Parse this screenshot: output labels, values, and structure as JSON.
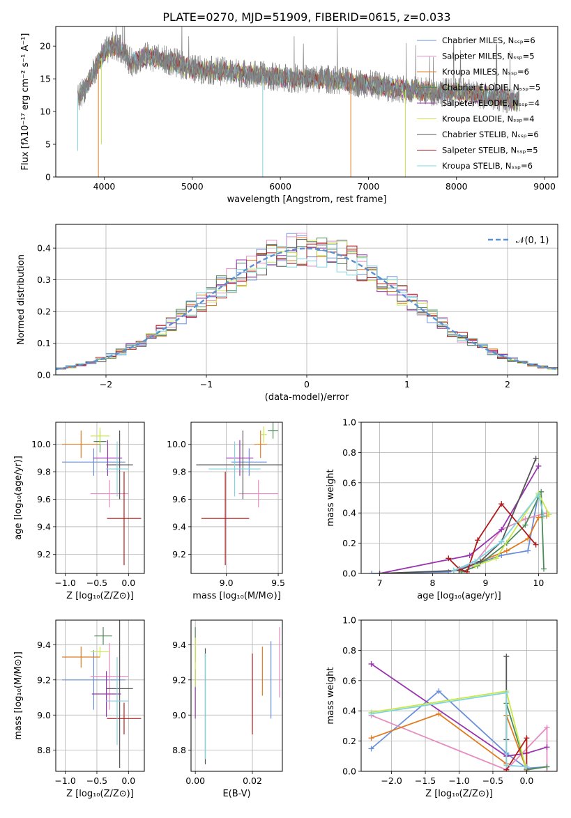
{
  "colors": {
    "s0": "#6a8fd8",
    "s1": "#e58cc0",
    "s2": "#e07b1f",
    "s3": "#4f8a5b",
    "s4": "#9a35b0",
    "s5": "#c9e84a",
    "s6": "#555555",
    "s7": "#b01a1a",
    "s8": "#7fd4e0",
    "gauss": "#5a8fd0"
  },
  "chart_data": [
    {
      "id": "spectrum",
      "type": "line",
      "title": "PLATE=0270, MJD=51909, FIBERID=0615, z=0.033",
      "xlabel": "wavelength [Angstrom, rest frame]",
      "ylabel": "Flux [fλ10⁻¹⁷ erg cm⁻² s⁻¹ A⁻¹]",
      "xlim": [
        3450,
        9150
      ],
      "ylim": [
        0,
        23
      ],
      "xticks": [
        4000,
        5000,
        6000,
        7000,
        8000,
        9000
      ],
      "yticks": [
        0,
        5,
        10,
        15,
        20
      ],
      "legend_position": "top-right",
      "legend": [
        "Chabrier MILES, Nₛₛₚ=6",
        "Salpeter MILES, Nₛₛₚ=5",
        "Kroupa MILES, Nₛₛₚ=6",
        "Chabrier ELODIE, Nₛₛₚ=5",
        "Salpeter ELODIE, Nₛₛₚ=4",
        "Kroupa ELODIE, Nₛₛₚ=4",
        "Chabrier STELIB, Nₛₛₚ=6",
        "Salpeter STELIB, Nₛₛₚ=5",
        "Kroupa STELIB, Nₛₛₚ=6"
      ],
      "continuum": {
        "x": [
          3700,
          3800,
          3900,
          4000,
          4100,
          4200,
          4300,
          4500,
          4800,
          5000,
          5300,
          5600,
          6000,
          6300,
          6500,
          6700,
          7000,
          7300,
          7500,
          7800,
          8000,
          8300,
          8500,
          8700
        ],
        "y": [
          12,
          14,
          16.5,
          19,
          20,
          19.5,
          17.5,
          18.5,
          17.5,
          16.5,
          16.2,
          15.8,
          15.2,
          15,
          15,
          14.7,
          14.2,
          13.5,
          13.2,
          13,
          13,
          12.5,
          12.2,
          11.5
        ]
      },
      "dips": [
        {
          "x": 3934,
          "y": 0
        },
        {
          "x": 3968,
          "y": 5
        },
        {
          "x": 5800,
          "y": 0
        },
        {
          "x": 6800,
          "y": 0
        },
        {
          "x": 7420,
          "y": 0
        },
        {
          "x": 3700,
          "y": 4
        }
      ]
    },
    {
      "id": "residuals",
      "type": "histogram",
      "xlabel": "(data-model)/error",
      "ylabel": "Normed distribution",
      "xlim": [
        -2.5,
        2.5
      ],
      "ylim": [
        0,
        0.475
      ],
      "xticks": [
        -2,
        -1,
        0,
        1,
        2
      ],
      "yticks": [
        0.0,
        0.1,
        0.2,
        0.3,
        0.4
      ],
      "legend_position": "top-right",
      "legend": [
        "𝒩(0, 1)"
      ],
      "gauss": {
        "mu": 0,
        "sigma": 1
      }
    },
    {
      "id": "age_vs_z",
      "type": "errorbar",
      "xlabel": "Z [log₁₀(Z/Z⊙)]",
      "ylabel": "age  [log₁₀(age/yr)]",
      "xlim": [
        -1.15,
        0.25
      ],
      "ylim": [
        9.06,
        10.16
      ],
      "xticks": [
        -1.0,
        -0.5,
        0.0
      ],
      "yticks": [
        9.2,
        9.4,
        9.6,
        9.8,
        10.0
      ],
      "points": [
        {
          "s": 0,
          "x": -0.55,
          "xe": 0.5,
          "y": 9.87,
          "ye": 0.1
        },
        {
          "s": 1,
          "x": -0.3,
          "xe": 0.3,
          "y": 9.64,
          "ye": 0.1
        },
        {
          "s": 2,
          "x": -0.75,
          "xe": 0.3,
          "y": 10.0,
          "ye": 0.1
        },
        {
          "s": 3,
          "x": -0.45,
          "xe": 0.1,
          "y": 10.02,
          "ye": 0.08
        },
        {
          "s": 4,
          "x": -0.33,
          "xe": 0.23,
          "y": 9.9,
          "ye": 0.13
        },
        {
          "s": 5,
          "x": -0.45,
          "xe": 0.15,
          "y": 10.06,
          "ye": 0.06
        },
        {
          "s": 6,
          "x": -0.14,
          "xe": 0.21,
          "y": 9.85,
          "ye": 0.25
        },
        {
          "s": 7,
          "x": -0.07,
          "xe": 0.27,
          "y": 9.46,
          "ye": 0.34
        },
        {
          "s": 8,
          "x": -0.18,
          "xe": 0.18,
          "y": 9.82,
          "ye": 0.2
        }
      ]
    },
    {
      "id": "age_vs_mass",
      "type": "errorbar",
      "xlabel": "mass [log₁₀(M/M⊙)]",
      "ylabel": "",
      "xlim": [
        8.66,
        9.54
      ],
      "ylim": [
        9.06,
        10.16
      ],
      "xticks": [
        9.0,
        9.5
      ],
      "yticks": [
        9.2,
        9.4,
        9.6,
        9.8,
        10.0
      ],
      "points": [
        {
          "s": 0,
          "x": 9.22,
          "xe": 0.17,
          "y": 9.87,
          "ye": 0.1
        },
        {
          "s": 1,
          "x": 9.31,
          "xe": 0.19,
          "y": 9.64,
          "ye": 0.1
        },
        {
          "s": 2,
          "x": 9.33,
          "xe": 0.06,
          "y": 10.0,
          "ye": 0.1
        },
        {
          "s": 3,
          "x": 9.45,
          "xe": 0.05,
          "y": 10.1,
          "ye": 0.06
        },
        {
          "s": 4,
          "x": 9.13,
          "xe": 0.13,
          "y": 9.9,
          "ye": 0.13
        },
        {
          "s": 5,
          "x": 9.36,
          "xe": 0.03,
          "y": 10.07,
          "ye": 0.06
        },
        {
          "s": 6,
          "x": 9.16,
          "xe": 0.45,
          "y": 9.85,
          "ye": 0.25
        },
        {
          "s": 7,
          "x": 8.99,
          "xe": 0.23,
          "y": 9.46,
          "ye": 0.34
        },
        {
          "s": 8,
          "x": 9.08,
          "xe": 0.25,
          "y": 9.82,
          "ye": 0.2
        }
      ]
    },
    {
      "id": "weight_vs_age",
      "type": "line",
      "xlabel": "age  [log₁₀(age/yr)]",
      "ylabel": "mass weight",
      "xlim": [
        6.65,
        10.35
      ],
      "ylim": [
        0,
        1
      ],
      "xticks": [
        7,
        8,
        9,
        10
      ],
      "yticks": [
        0.0,
        0.2,
        0.4,
        0.6,
        0.8,
        1.0
      ],
      "series": [
        {
          "s": 0,
          "x": [
            6.85,
            8.3,
            8.7,
            9.3,
            9.8,
            10.0
          ],
          "y": [
            0,
            0.01,
            0.05,
            0.12,
            0.15,
            0.53
          ]
        },
        {
          "s": 1,
          "x": [
            8.4,
            8.75,
            9.3,
            9.75,
            10.15
          ],
          "y": [
            0.02,
            0.05,
            0.29,
            0.36,
            0.4
          ]
        },
        {
          "s": 2,
          "x": [
            8.5,
            8.9,
            9.4,
            9.8,
            10.0,
            10.15
          ],
          "y": [
            0.02,
            0.08,
            0.15,
            0.23,
            0.37,
            0.38
          ]
        },
        {
          "s": 3,
          "x": [
            8.55,
            8.85,
            9.4,
            9.75,
            10.05,
            10.1
          ],
          "y": [
            0.01,
            0.05,
            0.2,
            0.32,
            0.54,
            0.03
          ]
        },
        {
          "s": 4,
          "x": [
            7.0,
            8.7,
            9.3,
            10.0
          ],
          "y": [
            0,
            0.12,
            0.29,
            0.71
          ]
        },
        {
          "s": 5,
          "x": [
            8.8,
            9.2,
            10.0,
            10.2
          ],
          "y": [
            0.05,
            0.1,
            0.53,
            0.39
          ]
        },
        {
          "s": 6,
          "x": [
            7.0,
            8.5,
            8.9,
            9.3,
            9.95
          ],
          "y": [
            0,
            0.02,
            0.08,
            0.21,
            0.76
          ]
        },
        {
          "s": 7,
          "x": [
            8.3,
            8.5,
            8.65,
            8.85,
            9.3,
            9.95
          ],
          "y": [
            0.1,
            0.03,
            0.01,
            0.22,
            0.46,
            0.19
          ]
        },
        {
          "s": 8,
          "x": [
            8.4,
            8.8,
            9.3,
            10.0,
            10.1
          ],
          "y": [
            0.02,
            0.08,
            0.21,
            0.52,
            0.38
          ]
        }
      ]
    },
    {
      "id": "mass_vs_z",
      "type": "errorbar",
      "xlabel": "Z [log₁₀(Z/Z⊙)]",
      "ylabel": "mass [log₁₀(M/M⊙)]",
      "xlim": [
        -1.15,
        0.25
      ],
      "ylim": [
        8.68,
        9.54
      ],
      "xticks": [
        -1.0,
        -0.5,
        0.0
      ],
      "yticks": [
        8.8,
        9.0,
        9.2,
        9.4
      ],
      "points": [
        {
          "s": 0,
          "x": -0.55,
          "xe": 0.5,
          "y": 9.2,
          "ye": 0.17
        },
        {
          "s": 1,
          "x": -0.3,
          "xe": 0.3,
          "y": 9.22,
          "ye": 0.19
        },
        {
          "s": 2,
          "x": -0.75,
          "xe": 0.3,
          "y": 9.33,
          "ye": 0.06
        },
        {
          "s": 3,
          "x": -0.4,
          "xe": 0.14,
          "y": 9.45,
          "ye": 0.05
        },
        {
          "s": 4,
          "x": -0.35,
          "xe": 0.23,
          "y": 9.12,
          "ye": 0.13
        },
        {
          "s": 5,
          "x": -0.45,
          "xe": 0.15,
          "y": 9.36,
          "ye": 0.03
        },
        {
          "s": 6,
          "x": -0.14,
          "xe": 0.21,
          "y": 9.15,
          "ye": 0.45
        },
        {
          "s": 7,
          "x": -0.07,
          "xe": 0.27,
          "y": 8.98,
          "ye": 0.09
        },
        {
          "s": 8,
          "x": -0.18,
          "xe": 0.18,
          "y": 9.08,
          "ye": 0.25
        }
      ]
    },
    {
      "id": "mass_vs_ebv",
      "type": "errorbar",
      "xlabel": "E(B-V)",
      "ylabel": "",
      "xlim": [
        -0.0015,
        0.0305
      ],
      "ylim": [
        8.68,
        9.54
      ],
      "xticks": [
        0.0,
        0.02
      ],
      "yticks": [
        8.8,
        9.0,
        9.2,
        9.4
      ],
      "points": [
        {
          "s": 0,
          "x": 0.0265,
          "y": 9.2,
          "ye": 0.22
        },
        {
          "s": 1,
          "x": 0.0295,
          "y": 9.3,
          "ye": 0.2
        },
        {
          "s": 2,
          "x": 0.0235,
          "y": 9.25,
          "ye": 0.14
        },
        {
          "s": 3,
          "x": 0.0,
          "y": 9.4,
          "ye": 0.1
        },
        {
          "s": 4,
          "x": 0.0,
          "y": 9.12,
          "ye": 0.14
        },
        {
          "s": 5,
          "x": 0.0,
          "y": 9.3,
          "ye": 0.14
        },
        {
          "s": 6,
          "x": 0.0035,
          "y": 9.05,
          "ye": 0.33
        },
        {
          "s": 7,
          "x": 0.02,
          "y": 9.12,
          "ye": 0.23
        },
        {
          "s": 8,
          "x": 0.0035,
          "y": 9.05,
          "ye": 0.3
        }
      ]
    },
    {
      "id": "weight_vs_z",
      "type": "line",
      "xlabel": "Z [log₁₀(Z/Z⊙)]",
      "ylabel": "mass weight",
      "xlim": [
        -2.45,
        0.45
      ],
      "ylim": [
        0,
        1
      ],
      "xticks": [
        -2.0,
        -1.5,
        -1.0,
        -0.5,
        0.0
      ],
      "yticks": [
        0.0,
        0.2,
        0.4,
        0.6,
        0.8,
        1.0
      ],
      "series": [
        {
          "s": 0,
          "x": [
            -2.3,
            -1.3,
            -0.3,
            0.0,
            0.3
          ],
          "y": [
            0.15,
            0.53,
            0.12,
            0.02,
            0.03
          ]
        },
        {
          "s": 1,
          "x": [
            -2.3,
            -0.3,
            0.3,
            0.3
          ],
          "y": [
            0.37,
            0.01,
            0.29,
            0.0
          ]
        },
        {
          "s": 2,
          "x": [
            -2.3,
            -1.3,
            -0.3,
            -0.3,
            0.0
          ],
          "y": [
            0.22,
            0.38,
            0.05,
            0.37,
            0.01
          ]
        },
        {
          "s": 3,
          "x": [
            -0.3,
            0.0,
            0.3
          ],
          "y": [
            0.45,
            0.01,
            0.03
          ]
        },
        {
          "s": 4,
          "x": [
            -2.3,
            -0.3,
            0.0,
            0.3
          ],
          "y": [
            0.71,
            0.1,
            0.12,
            0.16
          ]
        },
        {
          "s": 5,
          "x": [
            -2.3,
            -0.3,
            0.0
          ],
          "y": [
            0.39,
            0.53,
            0.0
          ]
        },
        {
          "s": 6,
          "x": [
            -0.3,
            -0.3
          ],
          "y": [
            0.76,
            0.21
          ]
        },
        {
          "s": 7,
          "x": [
            -0.3,
            0.0,
            0.0
          ],
          "y": [
            0.01,
            0.22,
            0.0
          ]
        },
        {
          "s": 8,
          "x": [
            -2.3,
            -0.3,
            -0.3,
            0.0
          ],
          "y": [
            0.38,
            0.52,
            0.04,
            0.03
          ]
        }
      ]
    }
  ]
}
